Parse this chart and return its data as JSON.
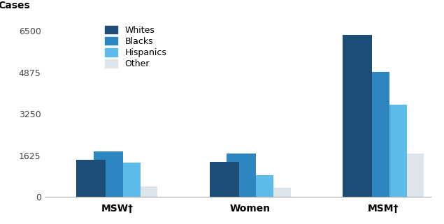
{
  "groups": [
    "MSW†",
    "Women",
    "MSM†"
  ],
  "categories": [
    "Whites",
    "Blacks",
    "Hispanics",
    "Other"
  ],
  "values": {
    "MSW†": [
      1450,
      1780,
      1350,
      430
    ],
    "Women": [
      1380,
      1700,
      870,
      380
    ],
    "MSM†": [
      6350,
      4880,
      3620,
      1700
    ]
  },
  "colors": [
    "#1e4d78",
    "#2e86c1",
    "#5dbbea",
    "#dde4ec"
  ],
  "ylabel": "Cases",
  "ylim": [
    0,
    7000
  ],
  "yticks": [
    0,
    1625,
    3250,
    4875,
    6500
  ],
  "bar_width": 0.22,
  "legend_labels": [
    "Whites",
    "Blacks",
    "Hispanics",
    "Other"
  ],
  "background_color": "#ffffff",
  "group_centers": [
    0.33,
    1.33,
    2.33
  ]
}
